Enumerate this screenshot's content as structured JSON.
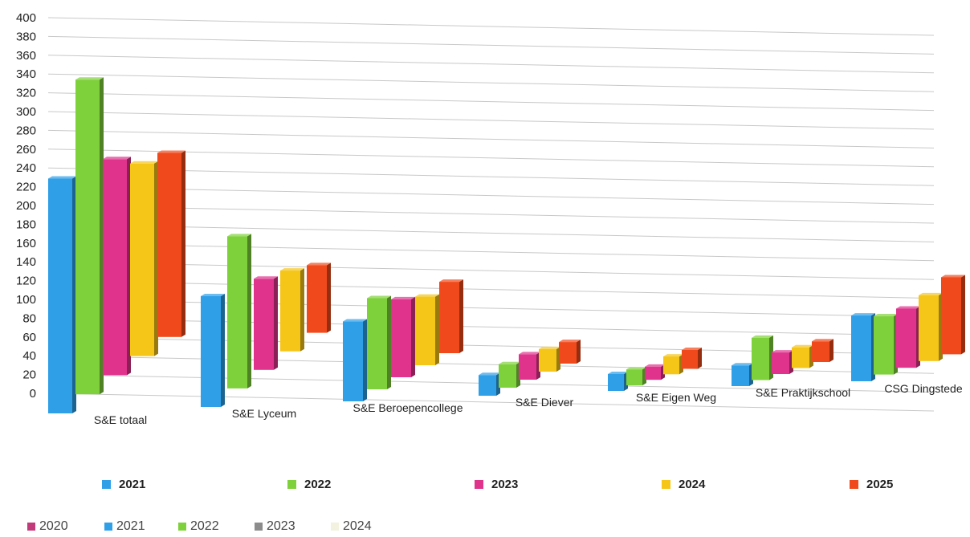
{
  "chart_data": {
    "type": "bar",
    "title": "",
    "xlabel": "",
    "ylabel": "",
    "ylim": [
      0,
      400
    ],
    "yticks": [
      "400",
      "380",
      "360",
      "340",
      "320",
      "300",
      "280",
      "260",
      "240",
      "220",
      "200",
      "180",
      "160",
      "140",
      "120",
      "100",
      "80",
      "60",
      "40",
      "20",
      "0"
    ],
    "categories": [
      "S&E totaal",
      "S&E Lyceum",
      "S&E Beroepencollege",
      "S&E Diever",
      "S&E Eigen Weg",
      "S&E Praktijkschool",
      "CSG Dingstede"
    ],
    "series": [
      {
        "name": "2021",
        "color": "#2f9fe8",
        "values": [
          250,
          118,
          85,
          22,
          18,
          22,
          70
        ]
      },
      {
        "name": "2022",
        "color": "#7fd13b",
        "values": [
          335,
          162,
          97,
          25,
          17,
          45,
          62
        ]
      },
      {
        "name": "2023",
        "color": "#e0338c",
        "values": [
          230,
          97,
          83,
          27,
          14,
          23,
          63
        ]
      },
      {
        "name": "2024",
        "color": "#f5c518",
        "values": [
          205,
          86,
          73,
          24,
          19,
          22,
          70
        ]
      },
      {
        "name": "2025",
        "color": "#f04a1c",
        "values": [
          196,
          72,
          76,
          23,
          20,
          22,
          82
        ]
      }
    ],
    "legend_position": "bottom",
    "grid": true
  },
  "legend": {
    "main": [
      {
        "label": "2021",
        "color": "#2f9fe8"
      },
      {
        "label": "2022",
        "color": "#7fd13b"
      },
      {
        "label": "2023",
        "color": "#e0338c"
      },
      {
        "label": "2024",
        "color": "#f5c518"
      },
      {
        "label": "2025",
        "color": "#f04a1c"
      }
    ],
    "secondary": [
      {
        "label": "2020",
        "color": "#c23a7a"
      },
      {
        "label": "2021",
        "color": "#2f9fe8"
      },
      {
        "label": "2022",
        "color": "#7fd13b"
      },
      {
        "label": "2023",
        "color": "#8c8c8c"
      },
      {
        "label": "2024",
        "color": "#f3f1df"
      }
    ]
  }
}
